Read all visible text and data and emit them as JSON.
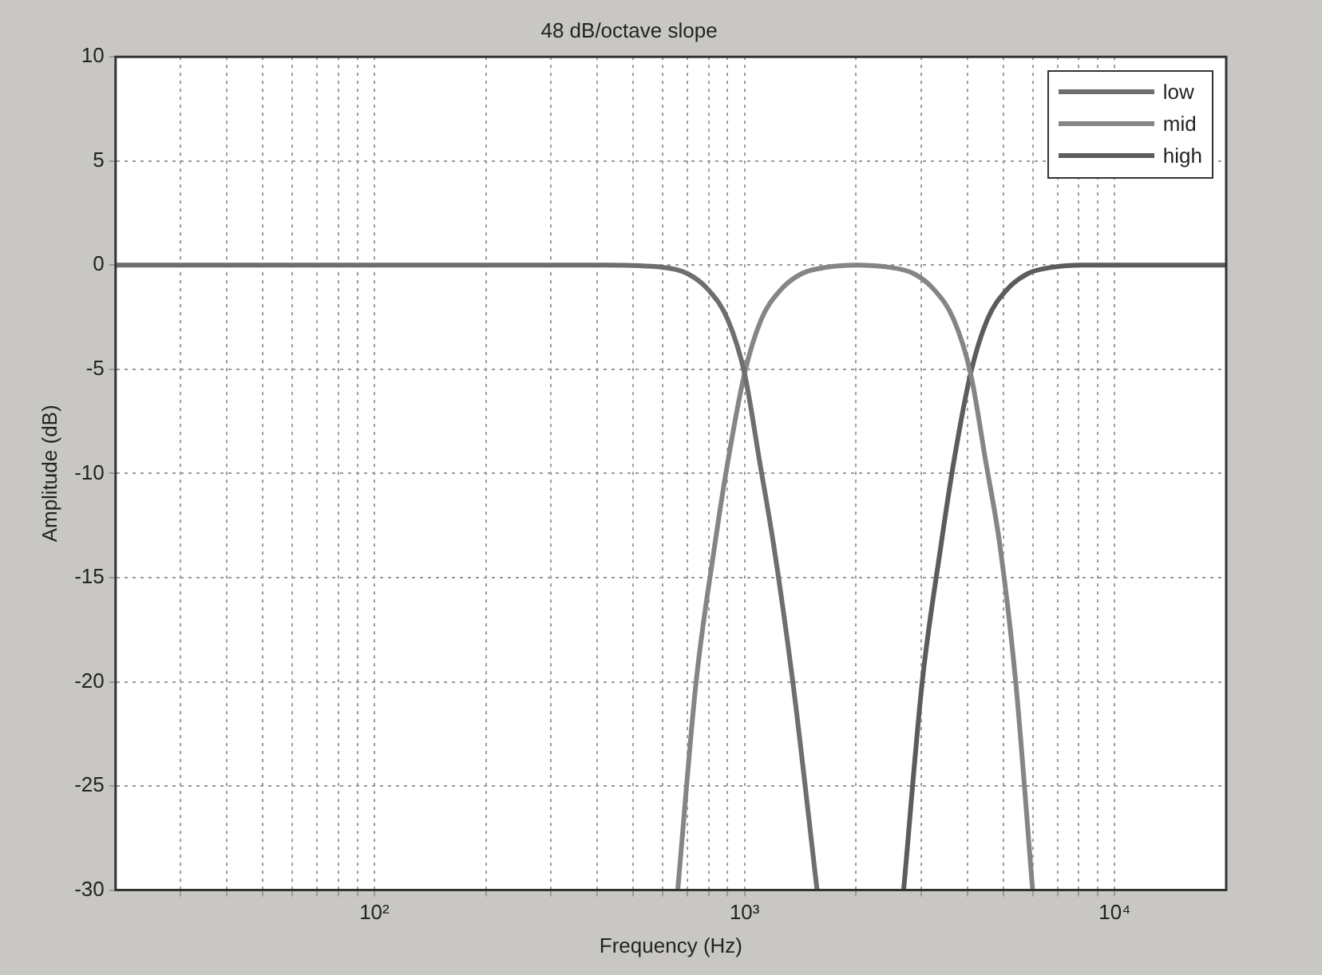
{
  "chart_data": {
    "type": "line",
    "title": "48 dB/octave slope",
    "xlabel": "Frequency (Hz)",
    "ylabel": "Amplitude (dB)",
    "log": "x",
    "grid": true,
    "legend": "top right",
    "marker": "none",
    "line_style": "solid",
    "xlim": [
      20,
      20000
    ],
    "xticks": [
      {
        "value": 30,
        "label": null
      },
      {
        "value": 40,
        "label": null
      },
      {
        "value": 50,
        "label": null
      },
      {
        "value": 60,
        "label": null
      },
      {
        "value": 70,
        "label": null
      },
      {
        "value": 80,
        "label": null
      },
      {
        "value": 90,
        "label": null
      },
      {
        "value": 100,
        "label": "10²"
      },
      {
        "value": 200,
        "label": null
      },
      {
        "value": 300,
        "label": null
      },
      {
        "value": 400,
        "label": null
      },
      {
        "value": 500,
        "label": null
      },
      {
        "value": 600,
        "label": null
      },
      {
        "value": 700,
        "label": null
      },
      {
        "value": 800,
        "label": null
      },
      {
        "value": 900,
        "label": null
      },
      {
        "value": 1000,
        "label": "10³"
      },
      {
        "value": 2000,
        "label": null
      },
      {
        "value": 3000,
        "label": null
      },
      {
        "value": 4000,
        "label": null
      },
      {
        "value": 5000,
        "label": null
      },
      {
        "value": 6000,
        "label": null
      },
      {
        "value": 7000,
        "label": null
      },
      {
        "value": 8000,
        "label": null
      },
      {
        "value": 9000,
        "label": null
      },
      {
        "value": 10000,
        "label": "10⁴"
      }
    ],
    "ylim": [
      -30,
      10
    ],
    "yticks": [
      -30,
      -25,
      -20,
      -15,
      -10,
      -5,
      0,
      5,
      10
    ],
    "series": [
      {
        "name": "low",
        "color": "#6e6e6e",
        "x": [
          20,
          400,
          600,
          700,
          800,
          900,
          1000,
          1100,
          1200,
          1350,
          1570
        ],
        "values": [
          0,
          0,
          -0.1,
          -0.4,
          -1.2,
          -2.6,
          -5.2,
          -9.5,
          -13.5,
          -20,
          -30
        ]
      },
      {
        "name": "mid",
        "color": "#858585",
        "x": [
          660,
          740,
          830,
          900,
          1000,
          1110,
          1250,
          1430,
          1670,
          2000,
          2450,
          2860,
          3260,
          3670,
          4080,
          4490,
          4900,
          5400,
          6000
        ],
        "values": [
          -30,
          -20,
          -13.5,
          -9.5,
          -5.2,
          -2.6,
          -1.2,
          -0.4,
          -0.1,
          0,
          -0.1,
          -0.4,
          -1.2,
          -2.6,
          -5.2,
          -9.5,
          -13.5,
          -20,
          -30
        ]
      },
      {
        "name": "high",
        "color": "#5c5c5c",
        "x": [
          2690,
          3020,
          3390,
          3670,
          4080,
          4530,
          5100,
          5830,
          6800,
          8160,
          20000
        ],
        "values": [
          -30,
          -20,
          -13.5,
          -9.5,
          -5.2,
          -2.6,
          -1.2,
          -0.4,
          -0.1,
          0,
          0
        ]
      }
    ]
  }
}
